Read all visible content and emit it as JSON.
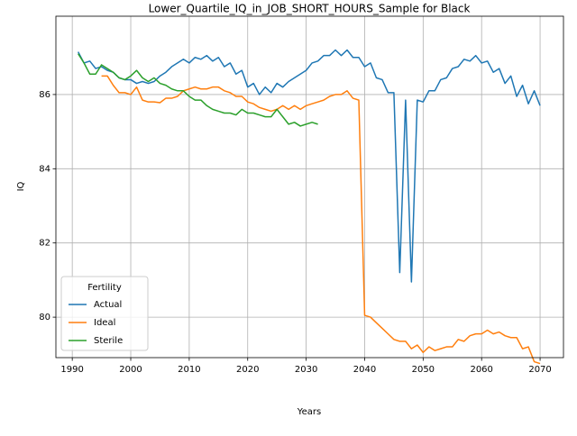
{
  "chart_data": {
    "type": "line",
    "title": "Lower_Quartile_IQ_in_JOB_SHORT_HOURS_Sample for Black",
    "x_label": "Years",
    "y_label": "IQ",
    "x": [
      1991,
      1992,
      1993,
      1994,
      1995,
      1996,
      1997,
      1998,
      1999,
      2000,
      2001,
      2002,
      2003,
      2004,
      2005,
      2006,
      2007,
      2008,
      2009,
      2010,
      2011,
      2012,
      2013,
      2014,
      2015,
      2016,
      2017,
      2018,
      2019,
      2020,
      2021,
      2022,
      2023,
      2024,
      2025,
      2026,
      2027,
      2028,
      2029,
      2030,
      2031,
      2032,
      2033,
      2034,
      2035,
      2036,
      2037,
      2038,
      2039,
      2040,
      2041,
      2042,
      2043,
      2044,
      2045,
      2046,
      2047,
      2048,
      2049,
      2050,
      2051,
      2052,
      2053,
      2054,
      2055,
      2056,
      2057,
      2058,
      2059,
      2060,
      2061,
      2062,
      2063,
      2064,
      2065,
      2066,
      2067,
      2068,
      2069,
      2070
    ],
    "series": [
      {
        "name": "Actual",
        "color": "#1f77b4",
        "values": [
          87.15,
          86.85,
          86.9,
          86.7,
          86.75,
          86.65,
          86.6,
          86.45,
          86.4,
          86.4,
          86.3,
          86.35,
          86.3,
          86.35,
          86.5,
          86.6,
          86.75,
          86.85,
          86.95,
          86.85,
          87.0,
          86.95,
          87.05,
          86.9,
          87.0,
          86.75,
          86.85,
          86.55,
          86.65,
          86.2,
          86.3,
          86.0,
          86.2,
          86.05,
          86.3,
          86.2,
          86.35,
          86.45,
          86.55,
          86.65,
          86.85,
          86.9,
          87.05,
          87.05,
          87.2,
          87.05,
          87.2,
          87.0,
          87.0,
          86.75,
          86.85,
          86.45,
          86.4,
          86.05,
          86.05,
          81.2,
          85.85,
          80.95,
          85.85,
          85.8,
          86.1,
          86.1,
          86.4,
          86.45,
          86.7,
          86.75,
          86.95,
          86.9,
          87.05,
          86.85,
          86.9,
          86.6,
          86.7,
          86.3,
          86.5,
          85.95,
          86.25,
          85.75,
          86.1,
          85.7
        ]
      },
      {
        "name": "Ideal",
        "color": "#ff7f0e",
        "values": [
          null,
          null,
          null,
          null,
          86.5,
          86.5,
          86.25,
          86.05,
          86.05,
          86.0,
          86.2,
          85.85,
          85.8,
          85.8,
          85.78,
          85.9,
          85.9,
          85.95,
          86.1,
          86.15,
          86.2,
          86.15,
          86.15,
          86.2,
          86.2,
          86.1,
          86.05,
          85.95,
          85.95,
          85.8,
          85.75,
          85.65,
          85.6,
          85.55,
          85.6,
          85.7,
          85.6,
          85.7,
          85.6,
          85.7,
          85.75,
          85.8,
          85.85,
          85.95,
          86.0,
          86.0,
          86.1,
          85.9,
          85.85,
          80.05,
          80.0,
          79.85,
          79.7,
          79.55,
          79.4,
          79.35,
          79.35,
          79.15,
          79.25,
          79.05,
          79.2,
          79.1,
          79.15,
          79.2,
          79.2,
          79.4,
          79.35,
          79.5,
          79.55,
          79.55,
          79.65,
          79.55,
          79.6,
          79.5,
          79.45,
          79.45,
          79.15,
          79.2,
          78.8,
          78.75
        ]
      },
      {
        "name": "Sterile",
        "color": "#2ca02c",
        "values": [
          87.1,
          86.85,
          86.55,
          86.55,
          86.8,
          86.7,
          86.6,
          86.45,
          86.4,
          86.5,
          86.65,
          86.45,
          86.35,
          86.45,
          86.3,
          86.25,
          86.15,
          86.1,
          86.1,
          85.95,
          85.85,
          85.85,
          85.7,
          85.6,
          85.55,
          85.5,
          85.5,
          85.45,
          85.6,
          85.5,
          85.5,
          85.45,
          85.4,
          85.4,
          85.6,
          85.4,
          85.2,
          85.25,
          85.15,
          85.2,
          85.25,
          85.2,
          null,
          null,
          null,
          null,
          null,
          null,
          null,
          null,
          null,
          null,
          null,
          null,
          null,
          null,
          null,
          null,
          null,
          null,
          null,
          null,
          null,
          null,
          null,
          null,
          null,
          null,
          null,
          null,
          null,
          null,
          null,
          null,
          null,
          null,
          null,
          null,
          null,
          null
        ]
      }
    ],
    "xlim": [
      1987.2,
      2074.0
    ],
    "ylim": [
      78.91,
      88.11
    ],
    "xticks": [
      1990,
      2000,
      2010,
      2020,
      2030,
      2040,
      2050,
      2060,
      2070
    ],
    "yticks": [
      80,
      82,
      84,
      86
    ],
    "grid": true,
    "legend_title": "Fertility",
    "legend_loc": "lower left"
  }
}
